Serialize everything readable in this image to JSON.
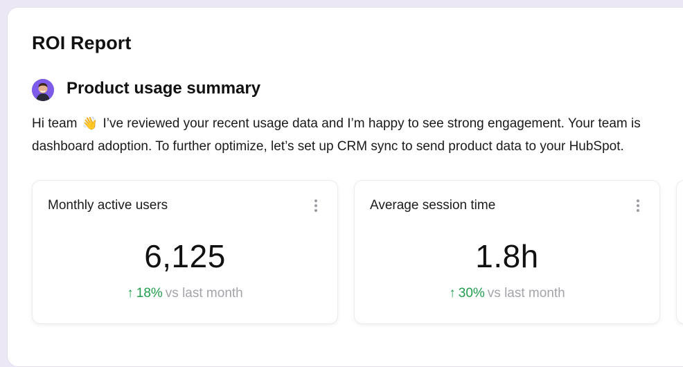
{
  "report": {
    "title": "ROI Report"
  },
  "summary": {
    "title": "Product usage summary",
    "avatar_icon": "user-avatar",
    "message_line_1_before": "Hi team",
    "message_wave_icon": "👋",
    "message_line_1_after": "I’ve reviewed your recent usage data and I’m happy to see strong engagement. Your team is",
    "message_line_2": "dashboard adoption. To further optimize, let’s set up CRM sync to send product data to your HubSpot."
  },
  "metrics": [
    {
      "label": "Monthly active users",
      "value": "6,125",
      "delta_arrow": "↑",
      "delta": "18%",
      "compare": "vs last month"
    },
    {
      "label": "Average session time",
      "value": "1.8h",
      "delta_arrow": "↑",
      "delta": "30%",
      "compare": "vs last month"
    }
  ],
  "colors": {
    "positive": "#1f9d4d",
    "muted": "#a3a3aa",
    "avatar_bg": "#7c5ce8"
  }
}
